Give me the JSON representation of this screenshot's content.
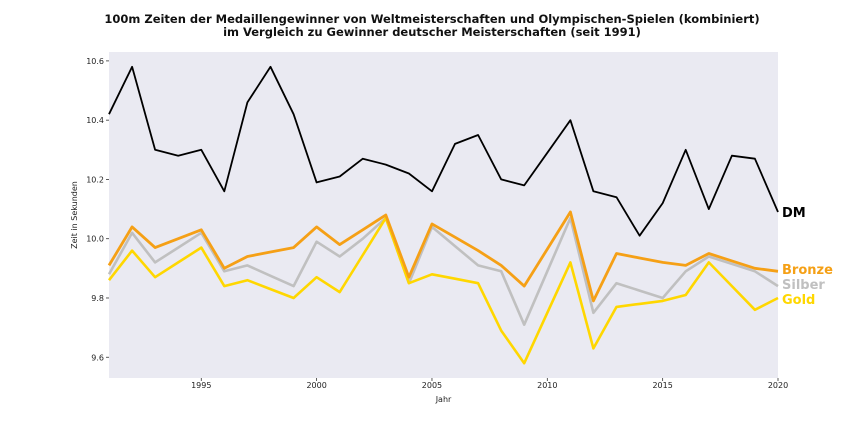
{
  "chart_data": {
    "type": "line",
    "title_line1": "100m Zeiten der Medaillengewinner von Weltmeisterschaften und Olympischen-Spielen (kombiniert)",
    "title_line2": "im Vergleich zu Gewinner deutscher Meisterschaften (seit 1991)",
    "xlabel": "Jahr",
    "ylabel": "Zeit in Sekunden",
    "xlim": [
      1991,
      2020
    ],
    "ylim": [
      9.53,
      10.63
    ],
    "x_ticks": [
      "1995",
      "2000",
      "2005",
      "2010",
      "2015",
      "2020"
    ],
    "y_ticks": [
      "9.6",
      "9.8",
      "10.0",
      "10.2",
      "10.4",
      "10.6"
    ],
    "grid": false,
    "background": "#eaeaf2",
    "x": [
      1991,
      1992,
      1993,
      1994,
      1995,
      1996,
      1997,
      1998,
      1999,
      2000,
      2001,
      2002,
      2003,
      2004,
      2005,
      2006,
      2007,
      2008,
      2009,
      2010,
      2011,
      2012,
      2013,
      2014,
      2015,
      2016,
      2017,
      2018,
      2019,
      2020
    ],
    "series": [
      {
        "name": "DM",
        "color": "#000000",
        "values": [
          10.42,
          10.58,
          10.3,
          10.28,
          10.3,
          10.16,
          10.46,
          10.58,
          10.42,
          10.19,
          10.21,
          10.27,
          10.25,
          10.22,
          10.16,
          10.32,
          10.35,
          10.2,
          10.18,
          10.29,
          10.4,
          10.16,
          10.14,
          10.01,
          10.12,
          10.3,
          10.1,
          10.28,
          10.27,
          10.09
        ]
      },
      {
        "name": "Bronze",
        "color": "#f5a016",
        "values": [
          9.91,
          10.04,
          9.97,
          10.0,
          10.03,
          9.9,
          9.94,
          9.955,
          9.97,
          10.04,
          9.98,
          10.03,
          10.08,
          9.87,
          10.05,
          10.005,
          9.96,
          9.91,
          9.84,
          9.965,
          10.09,
          9.79,
          9.95,
          9.935,
          9.92,
          9.91,
          9.95,
          9.925,
          9.9,
          9.89
        ]
      },
      {
        "name": "Silber",
        "color": "#c0c0c0",
        "values": [
          9.88,
          10.02,
          9.92,
          9.97,
          10.02,
          9.89,
          9.91,
          9.875,
          9.84,
          9.99,
          9.94,
          10.0,
          10.07,
          9.85,
          10.04,
          9.975,
          9.91,
          9.89,
          9.71,
          9.89,
          10.07,
          9.75,
          9.85,
          9.825,
          9.8,
          9.89,
          9.94,
          9.915,
          9.89,
          9.84
        ]
      },
      {
        "name": "Gold",
        "color": "#ffd700",
        "values": [
          9.86,
          9.96,
          9.87,
          9.92,
          9.97,
          9.84,
          9.86,
          9.83,
          9.8,
          9.87,
          9.82,
          9.945,
          10.07,
          9.85,
          9.88,
          9.865,
          9.85,
          9.69,
          9.58,
          9.75,
          9.92,
          9.63,
          9.77,
          9.78,
          9.79,
          9.81,
          9.92,
          9.84,
          9.76,
          9.8
        ]
      }
    ]
  }
}
